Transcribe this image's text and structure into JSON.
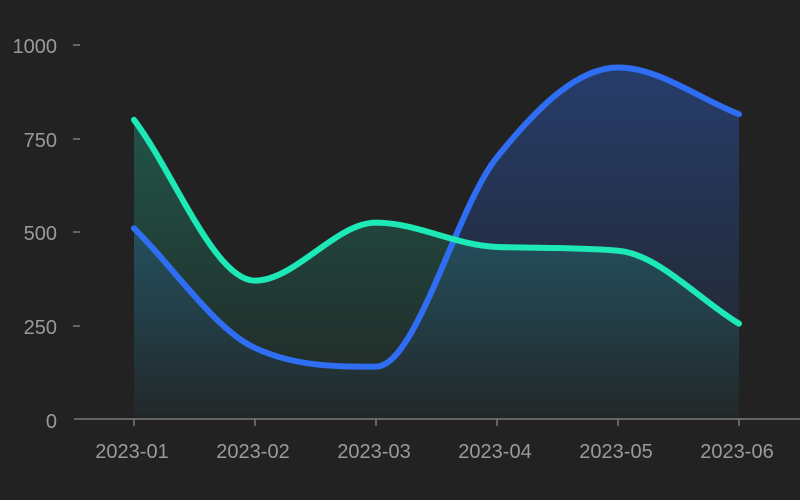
{
  "chart_data": {
    "type": "area",
    "title": "",
    "xlabel": "",
    "ylabel": "",
    "categories": [
      "2023-01",
      "2023-02",
      "2023-03",
      "2023-04",
      "2023-05",
      "2023-06"
    ],
    "ylim": [
      0,
      1000
    ],
    "yticks": [
      "0",
      "250",
      "500",
      "750",
      "1000"
    ],
    "grid": false,
    "legend": "none",
    "series": [
      {
        "values": [
          800,
          370,
          525,
          460,
          450,
          255
        ],
        "color": "#1de9b6"
      },
      {
        "values": [
          510,
          190,
          140,
          700,
          940,
          815
        ],
        "color": "#2f6ef2"
      }
    ]
  }
}
